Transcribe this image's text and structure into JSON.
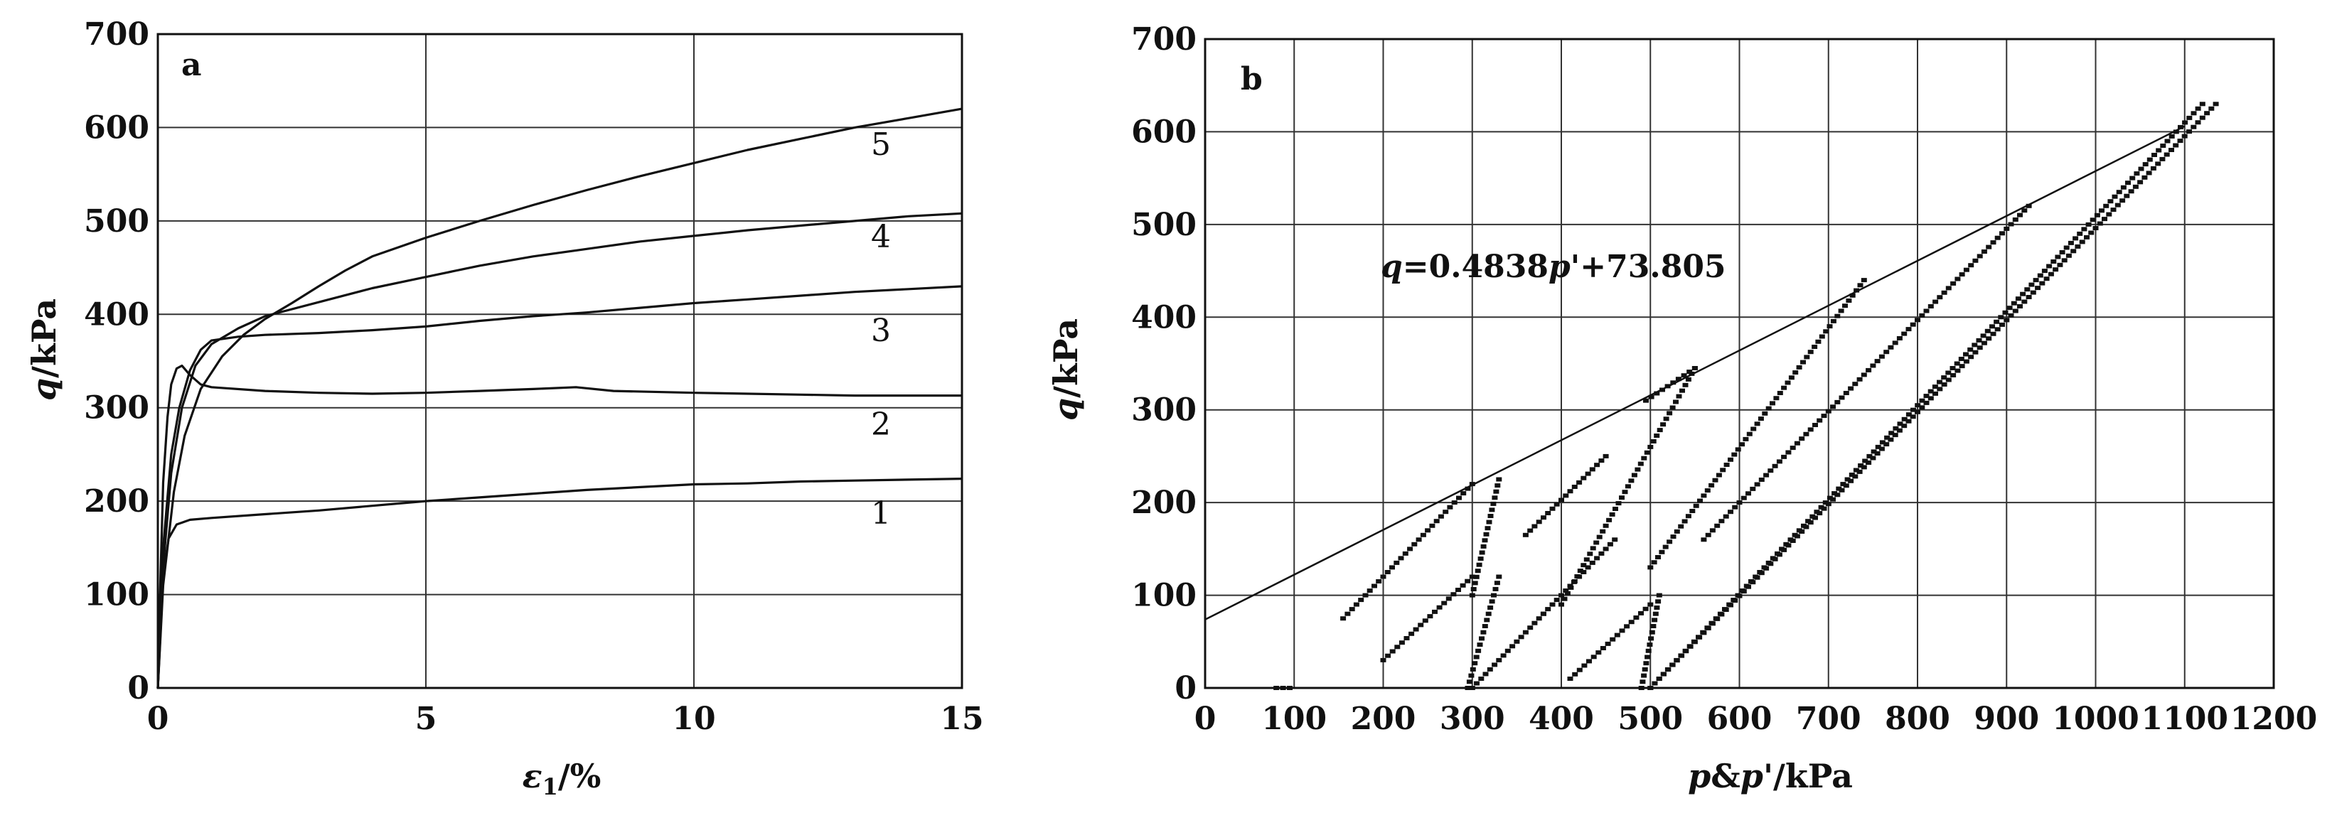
{
  "chart_data": [
    {
      "type": "line",
      "panel": "a",
      "xlabel": "ε₁/%",
      "ylabel": "q/kPa",
      "xlim": [
        0,
        15
      ],
      "ylim": [
        0,
        700
      ],
      "xticks": [
        0,
        5,
        10,
        15
      ],
      "yticks": [
        0,
        100,
        200,
        300,
        400,
        500,
        600,
        700
      ],
      "grid": true,
      "series": [
        {
          "name": "1",
          "points": [
            [
              0,
              0
            ],
            [
              0.05,
              60
            ],
            [
              0.1,
              120
            ],
            [
              0.2,
              160
            ],
            [
              0.35,
              175
            ],
            [
              0.6,
              180
            ],
            [
              1,
              182
            ],
            [
              2,
              186
            ],
            [
              3,
              190
            ],
            [
              4,
              195
            ],
            [
              5,
              200
            ],
            [
              6,
              204
            ],
            [
              7,
              208
            ],
            [
              8,
              212
            ],
            [
              9,
              215
            ],
            [
              10,
              218
            ],
            [
              11,
              219
            ],
            [
              12,
              221
            ],
            [
              13,
              222
            ],
            [
              14,
              223
            ],
            [
              15,
              224
            ]
          ]
        },
        {
          "name": "2",
          "points": [
            [
              0,
              0
            ],
            [
              0.05,
              120
            ],
            [
              0.1,
              220
            ],
            [
              0.18,
              290
            ],
            [
              0.25,
              325
            ],
            [
              0.35,
              342
            ],
            [
              0.45,
              345
            ],
            [
              0.6,
              335
            ],
            [
              0.8,
              325
            ],
            [
              1,
              322
            ],
            [
              2,
              318
            ],
            [
              3,
              316
            ],
            [
              4,
              315
            ],
            [
              5,
              316
            ],
            [
              6,
              318
            ],
            [
              7,
              320
            ],
            [
              7.8,
              322
            ],
            [
              8.5,
              318
            ],
            [
              10,
              316
            ],
            [
              12,
              314
            ],
            [
              13,
              313
            ],
            [
              14,
              313
            ],
            [
              15,
              313
            ]
          ]
        },
        {
          "name": "3",
          "points": [
            [
              0,
              0
            ],
            [
              0.1,
              150
            ],
            [
              0.25,
              250
            ],
            [
              0.4,
              300
            ],
            [
              0.6,
              340
            ],
            [
              0.8,
              362
            ],
            [
              1,
              372
            ],
            [
              1.5,
              376
            ],
            [
              2,
              378
            ],
            [
              3,
              380
            ],
            [
              4,
              383
            ],
            [
              5,
              387
            ],
            [
              6,
              393
            ],
            [
              7,
              398
            ],
            [
              8,
              402
            ],
            [
              9,
              407
            ],
            [
              10,
              412
            ],
            [
              11,
              416
            ],
            [
              12,
              420
            ],
            [
              13,
              424
            ],
            [
              14,
              427
            ],
            [
              15,
              430
            ]
          ]
        },
        {
          "name": "4",
          "points": [
            [
              0,
              0
            ],
            [
              0.1,
              130
            ],
            [
              0.25,
              230
            ],
            [
              0.45,
              300
            ],
            [
              0.7,
              345
            ],
            [
              1,
              368
            ],
            [
              1.5,
              385
            ],
            [
              2,
              398
            ],
            [
              3,
              413
            ],
            [
              4,
              428
            ],
            [
              5,
              440
            ],
            [
              6,
              452
            ],
            [
              7,
              462
            ],
            [
              8,
              470
            ],
            [
              9,
              478
            ],
            [
              10,
              484
            ],
            [
              11,
              490
            ],
            [
              12,
              495
            ],
            [
              13,
              500
            ],
            [
              14,
              505
            ],
            [
              15,
              508
            ]
          ]
        },
        {
          "name": "5",
          "points": [
            [
              0,
              0
            ],
            [
              0.1,
              110
            ],
            [
              0.3,
              210
            ],
            [
              0.5,
              270
            ],
            [
              0.8,
              320
            ],
            [
              1.2,
              355
            ],
            [
              1.6,
              378
            ],
            [
              2,
              395
            ],
            [
              2.5,
              412
            ],
            [
              3,
              430
            ],
            [
              3.5,
              447
            ],
            [
              4,
              462
            ],
            [
              5,
              482
            ],
            [
              6,
              500
            ],
            [
              7,
              517
            ],
            [
              8,
              533
            ],
            [
              9,
              548
            ],
            [
              10,
              562
            ],
            [
              11,
              576
            ],
            [
              12,
              588
            ],
            [
              13,
              600
            ],
            [
              14,
              610
            ],
            [
              15,
              620
            ]
          ]
        }
      ]
    },
    {
      "type": "scatter",
      "panel": "b",
      "xlabel": "p&p'/kPa",
      "ylabel": "q/kPa",
      "xlim": [
        0,
        1200
      ],
      "ylim": [
        0,
        700
      ],
      "xticks": [
        0,
        100,
        200,
        300,
        400,
        500,
        600,
        700,
        800,
        900,
        1000,
        1100,
        1200
      ],
      "yticks": [
        0,
        100,
        200,
        300,
        400,
        500,
        600,
        700
      ],
      "grid": true,
      "annotation": "q=0.4838p'+73.805",
      "fit_line": {
        "slope": 0.4838,
        "intercept": 73.805,
        "x_range": [
          0,
          1100
        ]
      },
      "segments": [
        {
          "from": [
            300,
            100
          ],
          "to": [
            330,
            225
          ]
        },
        {
          "from": [
            155,
            75
          ],
          "to": [
            300,
            220
          ]
        },
        {
          "from": [
            295,
            0
          ],
          "to": [
            330,
            120
          ]
        },
        {
          "from": [
            200,
            30
          ],
          "to": [
            300,
            120
          ]
        },
        {
          "from": [
            400,
            90
          ],
          "to": [
            550,
            345
          ]
        },
        {
          "from": [
            360,
            165
          ],
          "to": [
            450,
            250
          ]
        },
        {
          "from": [
            495,
            310
          ],
          "to": [
            550,
            345
          ]
        },
        {
          "from": [
            300,
            0
          ],
          "to": [
            380,
            80
          ]
        },
        {
          "from": [
            380,
            80
          ],
          "to": [
            460,
            160
          ]
        },
        {
          "from": [
            490,
            0
          ],
          "to": [
            510,
            100
          ]
        },
        {
          "from": [
            500,
            130
          ],
          "to": [
            740,
            440
          ]
        },
        {
          "from": [
            410,
            10
          ],
          "to": [
            500,
            90
          ]
        },
        {
          "from": [
            560,
            160
          ],
          "to": [
            600,
            200
          ]
        },
        {
          "from": [
            600,
            200
          ],
          "to": [
            925,
            520
          ]
        },
        {
          "from": [
            500,
            0
          ],
          "to": [
            1120,
            630
          ]
        },
        {
          "from": [
            500,
            0
          ],
          "to": [
            1135,
            630
          ]
        },
        {
          "from": [
            80,
            0
          ],
          "to": [
            95,
            0
          ]
        }
      ]
    }
  ],
  "panels": {
    "a": {
      "letter": "a",
      "ylabel_q": "q",
      "ylabel_unit": "/kPa",
      "xlabel_var": "ε",
      "xlabel_sub": "1",
      "xlabel_unit": "/%",
      "curve_labels": [
        "1",
        "2",
        "3",
        "4",
        "5"
      ]
    },
    "b": {
      "letter": "b",
      "ylabel_q": "q",
      "ylabel_unit": "/kPa",
      "xlabel_p1": "p",
      "xlabel_amp": "&",
      "xlabel_p2": "p'",
      "xlabel_unit": "/kPa",
      "eq_q": "q",
      "eq_mid": "=0.4838",
      "eq_p": "p'",
      "eq_tail": "+73.805"
    }
  }
}
